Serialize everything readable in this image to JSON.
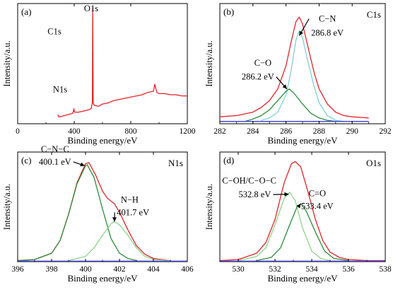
{
  "figure": {
    "colors": {
      "axis": "#000000",
      "red": "#e0242b",
      "cyan": "#7fd1cf",
      "green": "#2e8b3a",
      "lightgreen": "#8fd48a",
      "blue": "#3b3bd6"
    }
  },
  "chart_data": [
    {
      "id": "a",
      "type": "line",
      "panel_label": "(a)",
      "xlabel": "Binding energy/eV",
      "ylabel": "Intensity/a.u.",
      "xlim": [
        0,
        1200
      ],
      "xticks": [
        0,
        400,
        800,
        1200
      ],
      "xticklabels": [
        "0",
        "400",
        "800",
        "1200"
      ],
      "annotations": [
        {
          "text": "C1s",
          "x": 260,
          "y": 0.77
        },
        {
          "text": "O1s",
          "x": 520,
          "y": 0.97
        },
        {
          "text": "N1s",
          "x": 300,
          "y": 0.27
        }
      ],
      "series": [
        {
          "color": "red",
          "points": [
            [
              285,
              0.08
            ],
            [
              290,
              0.06
            ],
            [
              300,
              0.06
            ],
            [
              330,
              0.07
            ],
            [
              360,
              0.08
            ],
            [
              390,
              0.09
            ],
            [
              398,
              0.13
            ],
            [
              402,
              0.1
            ],
            [
              430,
              0.1
            ],
            [
              470,
              0.11
            ],
            [
              500,
              0.12
            ],
            [
              520,
              0.13
            ],
            [
              528,
              0.18
            ],
            [
              531,
              1.0
            ],
            [
              534,
              0.18
            ],
            [
              540,
              0.16
            ],
            [
              570,
              0.15
            ],
            [
              600,
              0.17
            ],
            [
              640,
              0.18
            ],
            [
              680,
              0.2
            ],
            [
              720,
              0.21
            ],
            [
              760,
              0.22
            ],
            [
              800,
              0.23
            ],
            [
              840,
              0.24
            ],
            [
              880,
              0.25
            ],
            [
              920,
              0.27
            ],
            [
              960,
              0.28
            ],
            [
              970,
              0.34
            ],
            [
              978,
              0.3
            ],
            [
              985,
              0.27
            ],
            [
              1000,
              0.26
            ],
            [
              1040,
              0.26
            ],
            [
              1080,
              0.25
            ],
            [
              1120,
              0.25
            ],
            [
              1160,
              0.24
            ],
            [
              1200,
              0.24
            ]
          ]
        }
      ]
    },
    {
      "id": "b",
      "type": "line",
      "panel_label": "(b)",
      "corner_label": "C1s",
      "xlabel": "Binding energy/eV",
      "ylabel": "Intensity/a.u.",
      "xlim": [
        282,
        292
      ],
      "xticks": [
        282,
        284,
        286,
        288,
        290,
        292
      ],
      "xticklabels": [
        "282",
        "284",
        "286",
        "288",
        "290",
        "292"
      ],
      "annotations": [
        {
          "text": "C−N",
          "x": 288.5,
          "y": 0.88,
          "arrow_to": [
            286.8,
            0.76
          ]
        },
        {
          "text": "286.8 eV",
          "x": 288.5,
          "y": 0.76
        },
        {
          "text": "C−O",
          "x": 284.6,
          "y": 0.5
        },
        {
          "text": "286.2 eV",
          "x": 284.3,
          "y": 0.38,
          "arrow_to": [
            286.05,
            0.3
          ]
        }
      ],
      "series": [
        {
          "color": "red",
          "points": [
            [
              282,
              0.06
            ],
            [
              283,
              0.07
            ],
            [
              284,
              0.1
            ],
            [
              284.5,
              0.14
            ],
            [
              285,
              0.2
            ],
            [
              285.5,
              0.3
            ],
            [
              286,
              0.5
            ],
            [
              286.3,
              0.7
            ],
            [
              286.6,
              0.88
            ],
            [
              286.8,
              0.92
            ],
            [
              287,
              0.86
            ],
            [
              287.3,
              0.68
            ],
            [
              287.7,
              0.44
            ],
            [
              288,
              0.3
            ],
            [
              288.5,
              0.17
            ],
            [
              289,
              0.1
            ],
            [
              289.5,
              0.07
            ],
            [
              290,
              0.06
            ],
            [
              291,
              0.05
            ]
          ]
        },
        {
          "color": "cyan",
          "points": [
            [
              284.5,
              0.03
            ],
            [
              285,
              0.05
            ],
            [
              285.5,
              0.1
            ],
            [
              286,
              0.25
            ],
            [
              286.3,
              0.45
            ],
            [
              286.6,
              0.72
            ],
            [
              286.8,
              0.8
            ],
            [
              287,
              0.74
            ],
            [
              287.3,
              0.55
            ],
            [
              287.7,
              0.32
            ],
            [
              288,
              0.18
            ],
            [
              288.5,
              0.07
            ],
            [
              289,
              0.03
            ],
            [
              289.5,
              0.02
            ]
          ]
        },
        {
          "color": "green",
          "points": [
            [
              283.5,
              0.02
            ],
            [
              284,
              0.04
            ],
            [
              284.5,
              0.07
            ],
            [
              285,
              0.12
            ],
            [
              285.5,
              0.2
            ],
            [
              286,
              0.28
            ],
            [
              286.2,
              0.3
            ],
            [
              286.5,
              0.26
            ],
            [
              287,
              0.17
            ],
            [
              287.5,
              0.09
            ],
            [
              288,
              0.05
            ],
            [
              288.5,
              0.03
            ],
            [
              289,
              0.02
            ]
          ]
        },
        {
          "color": "blue",
          "points": [
            [
              282,
              0.02
            ],
            [
              291,
              0.02
            ]
          ]
        }
      ]
    },
    {
      "id": "c",
      "type": "line",
      "panel_label": "(c)",
      "corner_label": "N1s",
      "xlabel": "Binding energy/eV",
      "ylabel": "Intensity/a.u.",
      "xlim": [
        396,
        406
      ],
      "xticks": [
        396,
        398,
        400,
        402,
        404,
        406
      ],
      "xticklabels": [
        "396",
        "398",
        "400",
        "402",
        "404",
        "406"
      ],
      "annotations": [
        {
          "text": "C−N−C",
          "x": 398.2,
          "y": 1.04
        },
        {
          "text": "400.1 eV",
          "x": 398.2,
          "y": 0.92,
          "arrow_to": [
            399.95,
            0.91
          ]
        },
        {
          "text": "N−H",
          "x": 402.6,
          "y": 0.56
        },
        {
          "text": "401.7 eV",
          "x": 402.8,
          "y": 0.44,
          "arrow_to": [
            401.7,
            0.38
          ]
        }
      ],
      "series": [
        {
          "color": "red",
          "points": [
            [
              396,
              0.01
            ],
            [
              397,
              0.02
            ],
            [
              398,
              0.08
            ],
            [
              398.5,
              0.2
            ],
            [
              399,
              0.45
            ],
            [
              399.5,
              0.75
            ],
            [
              400,
              0.93
            ],
            [
              400.2,
              0.94
            ],
            [
              400.6,
              0.82
            ],
            [
              401,
              0.67
            ],
            [
              401.3,
              0.6
            ],
            [
              401.7,
              0.55
            ],
            [
              402,
              0.47
            ],
            [
              402.5,
              0.3
            ],
            [
              403,
              0.15
            ],
            [
              403.5,
              0.07
            ],
            [
              404,
              0.03
            ],
            [
              405,
              0.01
            ]
          ]
        },
        {
          "color": "green",
          "points": [
            [
              396,
              0.01
            ],
            [
              397,
              0.02
            ],
            [
              398,
              0.08
            ],
            [
              398.5,
              0.2
            ],
            [
              399,
              0.45
            ],
            [
              399.5,
              0.74
            ],
            [
              400,
              0.91
            ],
            [
              400.1,
              0.92
            ],
            [
              400.5,
              0.8
            ],
            [
              401,
              0.5
            ],
            [
              401.5,
              0.22
            ],
            [
              402,
              0.08
            ],
            [
              402.5,
              0.03
            ],
            [
              403,
              0.01
            ]
          ]
        },
        {
          "color": "lightgreen",
          "points": [
            [
              399,
              0.01
            ],
            [
              400,
              0.05
            ],
            [
              400.5,
              0.13
            ],
            [
              401,
              0.25
            ],
            [
              401.5,
              0.36
            ],
            [
              401.7,
              0.38
            ],
            [
              402,
              0.35
            ],
            [
              402.5,
              0.25
            ],
            [
              403,
              0.13
            ],
            [
              403.5,
              0.05
            ],
            [
              404,
              0.02
            ],
            [
              405,
              0.01
            ]
          ]
        },
        {
          "color": "blue",
          "points": [
            [
              396,
              0.005
            ],
            [
              406,
              0.005
            ]
          ]
        }
      ]
    },
    {
      "id": "d",
      "type": "line",
      "panel_label": "(d)",
      "corner_label": "O1s",
      "xlabel": "Binding energy/eV",
      "ylabel": "Intensity/a.u.",
      "xlim": [
        529,
        538
      ],
      "xticks": [
        530,
        532,
        534,
        536,
        538
      ],
      "xticklabels": [
        "530",
        "532",
        "534",
        "536",
        "538"
      ],
      "annotations": [
        {
          "text": "C−OH/C−O−C",
          "x": 530.6,
          "y": 0.74
        },
        {
          "text": "532.8 eV",
          "x": 530.9,
          "y": 0.61,
          "arrow_to": [
            532.75,
            0.64
          ]
        },
        {
          "text": "C=O",
          "x": 534.3,
          "y": 0.62
        },
        {
          "text": "533.4 eV",
          "x": 534.3,
          "y": 0.5,
          "arrow_to": [
            533.4,
            0.55
          ]
        }
      ],
      "series": [
        {
          "color": "red",
          "points": [
            [
              529,
              0.01
            ],
            [
              530,
              0.02
            ],
            [
              531,
              0.08
            ],
            [
              531.5,
              0.18
            ],
            [
              532,
              0.4
            ],
            [
              532.5,
              0.75
            ],
            [
              532.9,
              0.93
            ],
            [
              533.1,
              0.95
            ],
            [
              533.4,
              0.9
            ],
            [
              533.8,
              0.66
            ],
            [
              534.2,
              0.4
            ],
            [
              534.6,
              0.2
            ],
            [
              535,
              0.09
            ],
            [
              535.5,
              0.04
            ],
            [
              536,
              0.02
            ],
            [
              537,
              0.01
            ],
            [
              538,
              0.01
            ]
          ]
        },
        {
          "color": "lightgreen",
          "points": [
            [
              530,
              0.01
            ],
            [
              531,
              0.05
            ],
            [
              531.5,
              0.13
            ],
            [
              532,
              0.35
            ],
            [
              532.5,
              0.6
            ],
            [
              532.8,
              0.66
            ],
            [
              533.1,
              0.58
            ],
            [
              533.5,
              0.32
            ],
            [
              534,
              0.1
            ],
            [
              534.5,
              0.03
            ],
            [
              535,
              0.01
            ]
          ]
        },
        {
          "color": "green",
          "points": [
            [
              531,
              0.01
            ],
            [
              531.8,
              0.04
            ],
            [
              532.3,
              0.13
            ],
            [
              532.8,
              0.35
            ],
            [
              533.2,
              0.52
            ],
            [
              533.4,
              0.55
            ],
            [
              533.7,
              0.48
            ],
            [
              534.2,
              0.28
            ],
            [
              534.7,
              0.1
            ],
            [
              535.2,
              0.03
            ],
            [
              536,
              0.01
            ]
          ]
        },
        {
          "color": "blue",
          "points": [
            [
              529,
              0.005
            ],
            [
              538,
              0.005
            ]
          ]
        }
      ]
    }
  ]
}
